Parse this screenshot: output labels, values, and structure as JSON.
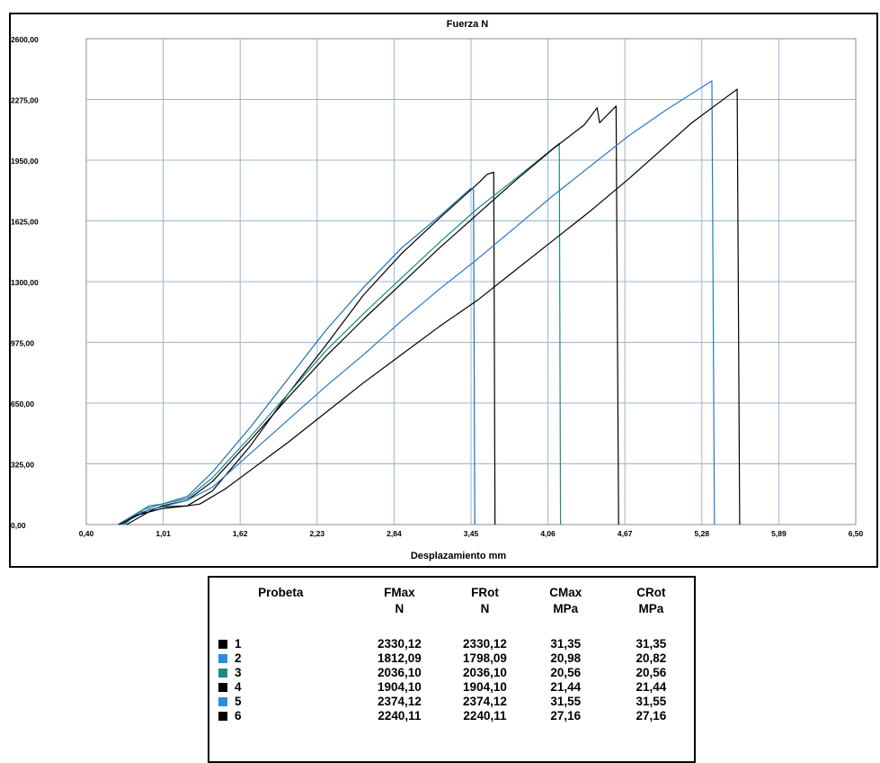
{
  "chart_data": {
    "type": "line",
    "title": "Fuerza  N",
    "xlabel": "Desplazamiento  mm",
    "ylabel": "",
    "xlim": [
      0.4,
      6.5
    ],
    "ylim": [
      0,
      2600
    ],
    "x_ticks": [
      "0,40",
      "1,01",
      "1,62",
      "2,23",
      "2,84",
      "3,45",
      "4,06",
      "4,67",
      "5,28",
      "5,89",
      "6,50"
    ],
    "y_ticks": [
      "0,00",
      "325,00",
      "650,00",
      "975,00",
      "1300,00",
      "1625,00",
      "1950,00",
      "2275,00",
      "2600,00"
    ],
    "grid": true,
    "series": [
      {
        "color": "#000000",
        "points": [
          [
            0.68,
            0
          ],
          [
            0.78,
            40
          ],
          [
            0.9,
            80
          ],
          [
            1.0,
            95
          ],
          [
            1.2,
            100
          ],
          [
            1.4,
            180
          ],
          [
            1.7,
            420
          ],
          [
            2.0,
            700
          ],
          [
            2.3,
            960
          ],
          [
            2.6,
            1230
          ],
          [
            2.9,
            1450
          ],
          [
            3.2,
            1640
          ],
          [
            3.48,
            1810
          ],
          [
            3.52,
            1835
          ],
          [
            3.58,
            1875
          ],
          [
            3.63,
            1885
          ],
          [
            3.64,
            0
          ]
        ]
      },
      {
        "color": "#1f6fb4",
        "points": [
          [
            0.68,
            0
          ],
          [
            0.8,
            60
          ],
          [
            0.9,
            100
          ],
          [
            1.0,
            110
          ],
          [
            1.2,
            150
          ],
          [
            1.4,
            280
          ],
          [
            1.7,
            520
          ],
          [
            2.0,
            780
          ],
          [
            2.3,
            1040
          ],
          [
            2.6,
            1270
          ],
          [
            2.9,
            1480
          ],
          [
            3.2,
            1650
          ],
          [
            3.45,
            1800
          ],
          [
            3.47,
            1790
          ],
          [
            3.48,
            0
          ]
        ]
      },
      {
        "color": "#1e8a82",
        "points": [
          [
            0.7,
            0
          ],
          [
            0.85,
            80
          ],
          [
            1.0,
            110
          ],
          [
            1.2,
            140
          ],
          [
            1.4,
            250
          ],
          [
            1.7,
            470
          ],
          [
            2.0,
            700
          ],
          [
            2.3,
            930
          ],
          [
            2.6,
            1130
          ],
          [
            2.9,
            1320
          ],
          [
            3.2,
            1510
          ],
          [
            3.5,
            1690
          ],
          [
            3.8,
            1850
          ],
          [
            4.15,
            2040
          ],
          [
            4.16,
            0
          ]
        ]
      },
      {
        "color": "#000000",
        "points": [
          [
            0.72,
            0
          ],
          [
            0.9,
            70
          ],
          [
            1.0,
            100
          ],
          [
            1.2,
            130
          ],
          [
            1.4,
            230
          ],
          [
            1.7,
            450
          ],
          [
            2.0,
            680
          ],
          [
            2.3,
            900
          ],
          [
            2.6,
            1100
          ],
          [
            2.9,
            1290
          ],
          [
            3.2,
            1480
          ],
          [
            3.5,
            1660
          ],
          [
            3.8,
            1840
          ],
          [
            4.1,
            2010
          ],
          [
            4.35,
            2140
          ],
          [
            4.45,
            2230
          ],
          [
            4.47,
            2150
          ],
          [
            4.6,
            2240
          ],
          [
            4.62,
            0
          ]
        ]
      },
      {
        "color": "#2a78c2",
        "points": [
          [
            0.65,
            0
          ],
          [
            0.8,
            60
          ],
          [
            1.0,
            95
          ],
          [
            1.2,
            130
          ],
          [
            1.4,
            200
          ],
          [
            1.7,
            380
          ],
          [
            2.0,
            560
          ],
          [
            2.3,
            740
          ],
          [
            2.6,
            910
          ],
          [
            2.9,
            1090
          ],
          [
            3.2,
            1260
          ],
          [
            3.5,
            1420
          ],
          [
            3.8,
            1590
          ],
          [
            4.1,
            1760
          ],
          [
            4.4,
            1920
          ],
          [
            4.7,
            2080
          ],
          [
            5.0,
            2220
          ],
          [
            5.36,
            2374
          ],
          [
            5.38,
            0
          ]
        ]
      },
      {
        "color": "#000000",
        "points": [
          [
            0.66,
            0
          ],
          [
            0.8,
            50
          ],
          [
            1.0,
            85
          ],
          [
            1.2,
            100
          ],
          [
            1.3,
            110
          ],
          [
            1.5,
            190
          ],
          [
            1.7,
            290
          ],
          [
            2.0,
            440
          ],
          [
            2.3,
            600
          ],
          [
            2.6,
            760
          ],
          [
            2.9,
            910
          ],
          [
            3.2,
            1060
          ],
          [
            3.5,
            1200
          ],
          [
            3.8,
            1360
          ],
          [
            4.1,
            1520
          ],
          [
            4.4,
            1680
          ],
          [
            4.7,
            1850
          ],
          [
            5.0,
            2030
          ],
          [
            5.2,
            2150
          ],
          [
            5.5,
            2300
          ],
          [
            5.56,
            2330
          ],
          [
            5.58,
            0
          ]
        ]
      }
    ]
  },
  "table": {
    "headers": [
      {
        "name": "Probeta",
        "unit": ""
      },
      {
        "name": "FMax",
        "unit": "N"
      },
      {
        "name": "FRot",
        "unit": "N"
      },
      {
        "name": "CMax",
        "unit": "MPa"
      },
      {
        "name": "CRot",
        "unit": "MPa"
      }
    ],
    "rows": [
      {
        "id": "1",
        "color": "#000000",
        "fmax": "2330,12",
        "frot": "2330,12",
        "cmax": "31,35",
        "crot": "31,35"
      },
      {
        "id": "2",
        "color": "#2a8de0",
        "fmax": "1812,09",
        "frot": "1798,09",
        "cmax": "20,98",
        "crot": "20,82"
      },
      {
        "id": "3",
        "color": "#1e8a82",
        "fmax": "2036,10",
        "frot": "2036,10",
        "cmax": "20,56",
        "crot": "20,56"
      },
      {
        "id": "4",
        "color": "#000000",
        "fmax": "1904,10",
        "frot": "1904,10",
        "cmax": "21,44",
        "crot": "21,44"
      },
      {
        "id": "5",
        "color": "#2a8de0",
        "fmax": "2374,12",
        "frot": "2374,12",
        "cmax": "31,55",
        "crot": "31,55"
      },
      {
        "id": "6",
        "color": "#000000",
        "fmax": "2240,11",
        "frot": "2240,11",
        "cmax": "27,16",
        "crot": "27,16"
      }
    ]
  }
}
